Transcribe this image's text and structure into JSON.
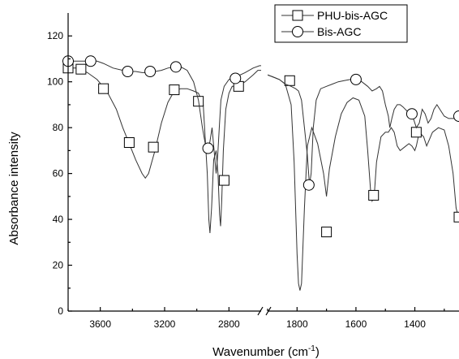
{
  "chart_data": {
    "type": "line",
    "xlabel": "Wavenumber (cm",
    "xlabel_sup": "-1",
    "xlabel_suffix": ")",
    "ylabel": "Absorbance intensity",
    "ylim": [
      0,
      130
    ],
    "yticks": [
      0,
      20,
      40,
      60,
      80,
      100,
      120
    ],
    "x_axis_broken": true,
    "x_reversed": true,
    "x_segments": [
      {
        "xlim": [
          3800,
          2600
        ],
        "ticks": [
          3600,
          3200,
          2800
        ]
      },
      {
        "xlim": [
          1900,
          1250
        ],
        "ticks": [
          1800,
          1600,
          1400
        ]
      }
    ],
    "legend": {
      "placement": "top-right",
      "entries": [
        {
          "label": "PHU-bis-AGC",
          "marker": "square"
        },
        {
          "label": "Bis-AGC",
          "marker": "circle"
        }
      ]
    },
    "series": [
      {
        "name": "PHU-bis-AGC",
        "marker": "square",
        "segments": [
          [
            [
              3800,
              106
            ],
            [
              3740,
              106
            ],
            [
              3680,
              104
            ],
            [
              3620,
              101
            ],
            [
              3560,
              96
            ],
            [
              3500,
              88
            ],
            [
              3460,
              80
            ],
            [
              3420,
              73
            ],
            [
              3380,
              66
            ],
            [
              3340,
              60
            ],
            [
              3320,
              58
            ],
            [
              3300,
              60
            ],
            [
              3260,
              70
            ],
            [
              3220,
              82
            ],
            [
              3180,
              91
            ],
            [
              3140,
              96
            ],
            [
              3100,
              97
            ],
            [
              3060,
              97
            ],
            [
              3020,
              96
            ],
            [
              2990,
              95
            ],
            [
              2960,
              90
            ],
            [
              2935,
              60
            ],
            [
              2925,
              40
            ],
            [
              2918,
              34
            ],
            [
              2908,
              45
            ],
            [
              2895,
              66
            ],
            [
              2880,
              70
            ],
            [
              2868,
              60
            ],
            [
              2858,
              42
            ],
            [
              2852,
              37
            ],
            [
              2845,
              48
            ],
            [
              2835,
              70
            ],
            [
              2820,
              88
            ],
            [
              2800,
              95
            ],
            [
              2780,
              98
            ],
            [
              2750,
              98
            ],
            [
              2700,
              100
            ],
            [
              2650,
              103
            ],
            [
              2620,
              105
            ],
            [
              2600,
              105
            ]
          ],
          [
            [
              1900,
              103
            ],
            [
              1880,
              102
            ],
            [
              1860,
              101
            ],
            [
              1840,
              99
            ],
            [
              1820,
              90
            ],
            [
              1810,
              65
            ],
            [
              1800,
              25
            ],
            [
              1795,
              12
            ],
            [
              1790,
              9
            ],
            [
              1785,
              12
            ],
            [
              1775,
              45
            ],
            [
              1765,
              72
            ],
            [
              1750,
              80
            ],
            [
              1730,
              73
            ],
            [
              1710,
              60
            ],
            [
              1700,
              50
            ],
            [
              1690,
              62
            ],
            [
              1670,
              76
            ],
            [
              1650,
              86
            ],
            [
              1630,
              91
            ],
            [
              1610,
              93
            ],
            [
              1590,
              92
            ],
            [
              1570,
              85
            ],
            [
              1560,
              70
            ],
            [
              1550,
              52
            ],
            [
              1545,
              48
            ],
            [
              1538,
              50
            ],
            [
              1530,
              65
            ],
            [
              1515,
              76
            ],
            [
              1500,
              78
            ],
            [
              1490,
              78
            ],
            [
              1480,
              80
            ],
            [
              1470,
              78
            ],
            [
              1460,
              72
            ],
            [
              1450,
              70
            ],
            [
              1430,
              72
            ],
            [
              1420,
              73
            ],
            [
              1410,
              72
            ],
            [
              1400,
              70
            ],
            [
              1395,
              72
            ],
            [
              1385,
              78
            ],
            [
              1370,
              76
            ],
            [
              1360,
              72
            ],
            [
              1350,
              75
            ],
            [
              1340,
              78
            ],
            [
              1320,
              80
            ],
            [
              1300,
              79
            ],
            [
              1285,
              72
            ],
            [
              1270,
              60
            ],
            [
              1260,
              45
            ],
            [
              1250,
              40
            ]
          ]
        ],
        "markers": [
          [
            3800,
            106
          ],
          [
            3720,
            105.5
          ],
          [
            3580,
            97
          ],
          [
            3420,
            73.5
          ],
          [
            3270,
            71.5
          ],
          [
            3140,
            96.5
          ],
          [
            2990,
            91.5
          ],
          [
            2830,
            57
          ],
          [
            2740,
            98
          ],
          [
            1825,
            100.5
          ],
          [
            1700,
            34.5
          ],
          [
            1540,
            50.5
          ],
          [
            1395,
            78
          ],
          [
            1250,
            41
          ]
        ]
      },
      {
        "name": "Bis-AGC",
        "marker": "circle",
        "segments": [
          [
            [
              3800,
              109
            ],
            [
              3740,
              109
            ],
            [
              3680,
              109
            ],
            [
              3620,
              109
            ],
            [
              3580,
              108
            ],
            [
              3520,
              106
            ],
            [
              3460,
              105
            ],
            [
              3420,
              104.5
            ],
            [
              3380,
              104.5
            ],
            [
              3340,
              104
            ],
            [
              3300,
              104
            ],
            [
              3260,
              104.5
            ],
            [
              3220,
              105
            ],
            [
              3180,
              106
            ],
            [
              3140,
              106.5
            ],
            [
              3100,
              106.5
            ],
            [
              3060,
              105
            ],
            [
              3020,
              100
            ],
            [
              2990,
              92
            ],
            [
              2965,
              80
            ],
            [
              2945,
              72
            ],
            [
              2930,
              70
            ],
            [
              2918,
              74
            ],
            [
              2905,
              80
            ],
            [
              2890,
              68
            ],
            [
              2880,
              60
            ],
            [
              2870,
              68
            ],
            [
              2860,
              80
            ],
            [
              2850,
              92
            ],
            [
              2830,
              98
            ],
            [
              2800,
              101
            ],
            [
              2760,
              102
            ],
            [
              2700,
              104
            ],
            [
              2650,
              106
            ],
            [
              2610,
              107
            ],
            [
              2600,
              107
            ]
          ],
          [
            [
              1900,
              103
            ],
            [
              1880,
              102
            ],
            [
              1860,
              101
            ],
            [
              1840,
              99
            ],
            [
              1820,
              98
            ],
            [
              1805,
              97
            ],
            [
              1795,
              96
            ],
            [
              1785,
              92
            ],
            [
              1775,
              80
            ],
            [
              1765,
              68
            ],
            [
              1758,
              55
            ],
            [
              1752,
              60
            ],
            [
              1745,
              80
            ],
            [
              1735,
              92
            ],
            [
              1720,
              97
            ],
            [
              1700,
              98
            ],
            [
              1680,
              99
            ],
            [
              1660,
              100
            ],
            [
              1640,
              100.5
            ],
            [
              1620,
              101
            ],
            [
              1600,
              101
            ],
            [
              1580,
              100
            ],
            [
              1560,
              98
            ],
            [
              1545,
              96
            ],
            [
              1530,
              97
            ],
            [
              1520,
              98
            ],
            [
              1510,
              96
            ],
            [
              1500,
              90
            ],
            [
              1490,
              85
            ],
            [
              1485,
              80
            ],
            [
              1478,
              84
            ],
            [
              1470,
              88
            ],
            [
              1460,
              90
            ],
            [
              1450,
              90
            ],
            [
              1440,
              89
            ],
            [
              1425,
              87
            ],
            [
              1415,
              86
            ],
            [
              1405,
              84
            ],
            [
              1395,
              80
            ],
            [
              1385,
              82
            ],
            [
              1375,
              88
            ],
            [
              1365,
              86
            ],
            [
              1355,
              82
            ],
            [
              1345,
              84
            ],
            [
              1335,
              88
            ],
            [
              1325,
              90
            ],
            [
              1315,
              88
            ],
            [
              1300,
              85
            ],
            [
              1285,
              84
            ],
            [
              1270,
              84
            ],
            [
              1260,
              84
            ],
            [
              1250,
              85
            ]
          ]
        ],
        "markers": [
          [
            3800,
            109
          ],
          [
            3660,
            109
          ],
          [
            3430,
            104.5
          ],
          [
            3290,
            104.5
          ],
          [
            3130,
            106.5
          ],
          [
            2930,
            71
          ],
          [
            2760,
            101.5
          ],
          [
            1760,
            55
          ],
          [
            1600,
            101
          ],
          [
            1410,
            86
          ],
          [
            1250,
            85
          ]
        ]
      }
    ]
  }
}
